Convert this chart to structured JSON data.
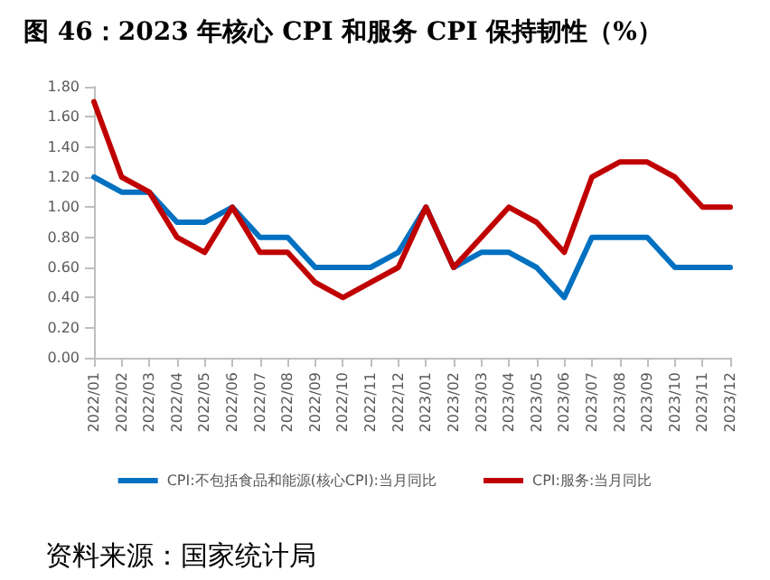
{
  "chart_data": {
    "type": "line",
    "title": "图 46：2023 年核心 CPI 和服务 CPI 保持韧性（%）",
    "categories": [
      "2022/01",
      "2022/02",
      "2022/03",
      "2022/04",
      "2022/05",
      "2022/06",
      "2022/07",
      "2022/08",
      "2022/09",
      "2022/10",
      "2022/11",
      "2022/12",
      "2023/01",
      "2023/02",
      "2023/03",
      "2023/04",
      "2023/05",
      "2023/06",
      "2023/07",
      "2023/08",
      "2023/09",
      "2023/10",
      "2023/11",
      "2023/12"
    ],
    "series": [
      {
        "name": "CPI:不包括食品和能源(核心CPI):当月同比",
        "color": "#0070c0",
        "values": [
          1.2,
          1.1,
          1.1,
          0.9,
          0.9,
          1.0,
          0.8,
          0.8,
          0.6,
          0.6,
          0.6,
          0.7,
          1.0,
          0.6,
          0.7,
          0.7,
          0.6,
          0.4,
          0.8,
          0.8,
          0.8,
          0.6,
          0.6,
          0.6
        ]
      },
      {
        "name": "CPI:服务:当月同比",
        "color": "#c00000",
        "values": [
          1.7,
          1.2,
          1.1,
          0.8,
          0.7,
          1.0,
          0.7,
          0.7,
          0.5,
          0.4,
          0.5,
          0.6,
          1.0,
          0.6,
          0.8,
          1.0,
          0.9,
          0.7,
          1.2,
          1.3,
          1.3,
          1.2,
          1.0,
          1.0
        ]
      }
    ],
    "ylim": [
      0,
      1.8
    ],
    "yticks": [
      {
        "value": 0,
        "label": "0.00"
      },
      {
        "value": 0.2,
        "label": "0.20"
      },
      {
        "value": 0.4,
        "label": "0.40"
      },
      {
        "value": 0.6,
        "label": "0.60"
      },
      {
        "value": 0.8,
        "label": "0.80"
      },
      {
        "value": 1.0,
        "label": "1.00"
      },
      {
        "value": 1.2,
        "label": "1.20"
      },
      {
        "value": 1.4,
        "label": "1.40"
      },
      {
        "value": 1.6,
        "label": "1.60"
      },
      {
        "value": 1.8,
        "label": "1.80"
      }
    ],
    "grid": false,
    "legend": "bottom",
    "marker": "none",
    "line_style": "solid",
    "annotations": [
      "资料来源：国家统计局"
    ]
  }
}
